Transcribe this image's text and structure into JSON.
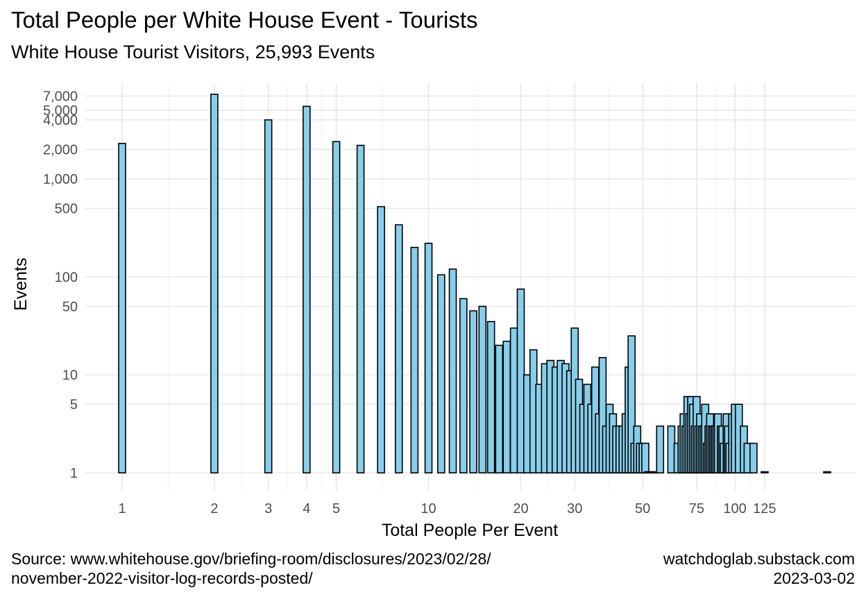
{
  "title": "Total People per White House Event - Tourists",
  "subtitle": "White House Tourist Visitors, 25,993 Events",
  "caption_left": [
    "Source: www.whitehouse.gov/briefing-room/disclosures/2023/02/28/",
    "november-2022-visitor-log-records-posted/"
  ],
  "caption_right": [
    "watchdoglab.substack.com",
    "2023-03-02"
  ],
  "chart_data": {
    "type": "bar",
    "title": "Total People per White House Event - Tourists",
    "subtitle": "White House Tourist Visitors, 25,993 Events",
    "xlabel": "Total People Per Event",
    "ylabel": "Events",
    "x_scale": "log",
    "y_scale": "log",
    "xlim": [
      0.9,
      215
    ],
    "ylim": [
      1,
      7500
    ],
    "x_ticks": [
      1,
      2,
      3,
      4,
      5,
      10,
      20,
      30,
      50,
      75,
      100,
      125
    ],
    "x_tick_labels": [
      "1",
      "2",
      "3",
      "4",
      "5",
      "10",
      "20",
      "30",
      "50",
      "75",
      "100",
      "125"
    ],
    "y_ticks": [
      1,
      5,
      10,
      50,
      100,
      500,
      1000,
      2000,
      4000,
      5000,
      7000
    ],
    "y_tick_labels": [
      "1",
      "5",
      "10",
      "50",
      "100",
      "500",
      "1,000",
      "2,000",
      "4,000",
      "5,000",
      "7,000"
    ],
    "grid": true,
    "bar_fill": "#87CEEB",
    "bar_stroke": "#000000",
    "x": [
      1,
      2,
      3,
      4,
      5,
      6,
      7,
      8,
      9,
      10,
      11,
      12,
      13,
      14,
      15,
      16,
      17,
      18,
      19,
      20,
      21,
      22,
      23,
      24,
      25,
      26,
      27,
      28,
      29,
      30,
      31,
      32,
      33,
      34,
      35,
      36,
      37,
      38,
      39,
      40,
      41,
      42,
      43,
      44,
      45,
      46,
      47,
      48,
      49,
      50,
      51,
      52,
      53,
      55,
      57,
      62,
      65,
      67,
      68,
      69,
      70,
      71,
      72,
      73,
      74,
      75,
      76,
      77,
      78,
      79,
      80,
      81,
      82,
      83,
      84,
      85,
      86,
      87,
      88,
      90,
      91,
      92,
      94,
      95,
      96,
      98,
      100,
      103,
      107,
      110,
      115,
      125,
      200
    ],
    "values": [
      2300,
      7300,
      4000,
      5500,
      2400,
      2200,
      520,
      340,
      200,
      220,
      105,
      120,
      60,
      45,
      50,
      35,
      20,
      22,
      30,
      75,
      10,
      18,
      8,
      13,
      14,
      12,
      14,
      13,
      11,
      30,
      9,
      5,
      8,
      5,
      12,
      4,
      15,
      3,
      5,
      4,
      3,
      3,
      3,
      4,
      12,
      25,
      2,
      3,
      2,
      2,
      2,
      1,
      1,
      1,
      3,
      3,
      2,
      3,
      4,
      3,
      6,
      4,
      6,
      5,
      3,
      6,
      3,
      4,
      3,
      3,
      5,
      2,
      3,
      4,
      3,
      3,
      3,
      3,
      4,
      3,
      3,
      2,
      4,
      3,
      2,
      4,
      5,
      5,
      3,
      2,
      2,
      1,
      1
    ]
  }
}
